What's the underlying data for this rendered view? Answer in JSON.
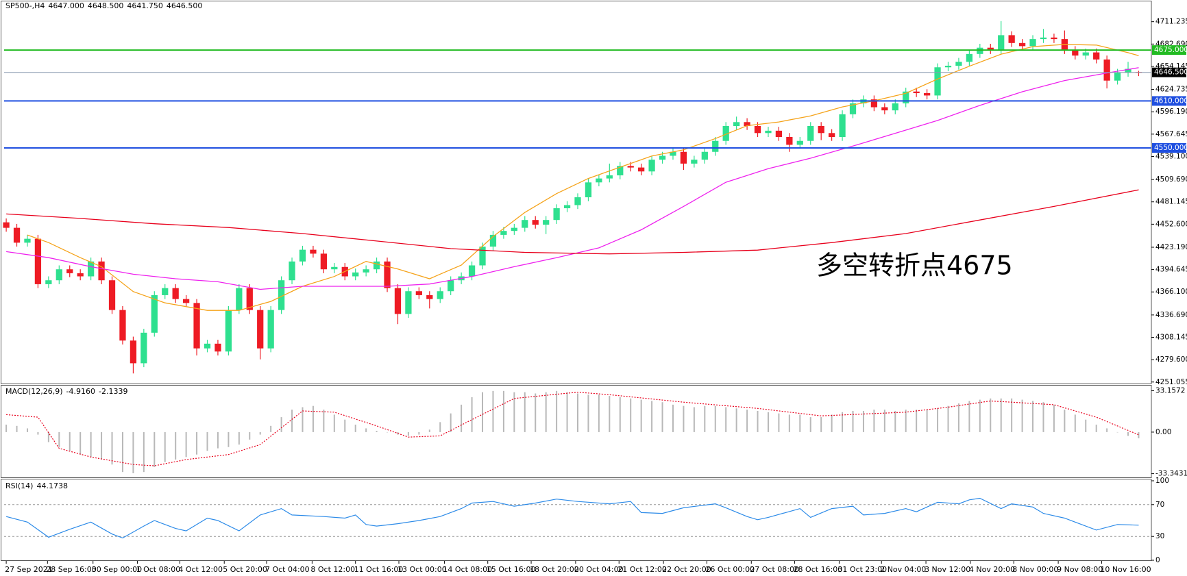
{
  "chart_data": [
    {
      "type": "candlestick",
      "title": "SP500-,H4",
      "header_values": [
        {
          "value": 4647,
          "label": "4647.000"
        },
        {
          "value": 4648.5,
          "label": "4648.500"
        },
        {
          "value": 4641.75,
          "label": "4641.750"
        },
        {
          "value": 4646.5,
          "label": "4646.500"
        }
      ],
      "up_color": "#2ee08f",
      "down_color": "#ee1b24",
      "open": [
        4455,
        4448,
        4429,
        4434,
        4376,
        4381,
        4395,
        4390,
        4386,
        4405,
        4381,
        4343,
        4304,
        4275,
        4314,
        4362,
        4371,
        4357,
        4352,
        4294,
        4300,
        4290,
        4343,
        4371,
        4343,
        4294,
        4343,
        4381,
        4405,
        4420,
        4415,
        4395,
        4398,
        4386,
        4391,
        4395,
        4405,
        4371,
        4338,
        4367,
        4362,
        4357,
        4367,
        4381,
        4386,
        4400,
        4424,
        4439,
        4444,
        4448,
        4458,
        4452,
        4458,
        4473,
        4477,
        4487,
        4506,
        4511,
        4515,
        4527,
        4525,
        4520,
        4535,
        4540,
        4545,
        4530,
        4535,
        4545,
        4559,
        4578,
        4583,
        4578,
        4569,
        4572,
        4564,
        4554,
        4559,
        4578,
        4569,
        4564,
        4593,
        4607,
        4612,
        4602,
        4598,
        4607,
        4622,
        4620,
        4617,
        4653,
        4655,
        4660,
        4670,
        4678,
        4675,
        4694,
        4684,
        4680,
        4689,
        4691,
        4689,
        4675,
        4668,
        4672,
        4663,
        4636,
        4646,
        4647
      ],
      "high": [
        4460,
        4453,
        4439,
        4439,
        4386,
        4400,
        4400,
        4395,
        4410,
        4410,
        4386,
        4348,
        4309,
        4319,
        4367,
        4376,
        4376,
        4362,
        4357,
        4305,
        4305,
        4348,
        4376,
        4376,
        4348,
        4348,
        4386,
        4410,
        4425,
        4425,
        4420,
        4403,
        4403,
        4396,
        4400,
        4410,
        4410,
        4376,
        4372,
        4372,
        4367,
        4372,
        4386,
        4391,
        4405,
        4429,
        4444,
        4449,
        4453,
        4463,
        4463,
        4463,
        4478,
        4482,
        4492,
        4511,
        4516,
        4530,
        4532,
        4532,
        4530,
        4540,
        4545,
        4550,
        4550,
        4540,
        4550,
        4564,
        4583,
        4590,
        4588,
        4583,
        4577,
        4577,
        4569,
        4564,
        4583,
        4583,
        4574,
        4598,
        4612,
        4617,
        4617,
        4607,
        4612,
        4627,
        4627,
        4625,
        4658,
        4660,
        4665,
        4675,
        4683,
        4683,
        4712,
        4699,
        4689,
        4694,
        4702,
        4696,
        4700,
        4680,
        4677,
        4677,
        4668,
        4651,
        4660,
        4648.5
      ],
      "low": [
        4443,
        4424,
        4424,
        4371,
        4371,
        4376,
        4385,
        4381,
        4381,
        4376,
        4338,
        4299,
        4262,
        4270,
        4309,
        4357,
        4352,
        4347,
        4285,
        4289,
        4285,
        4285,
        4338,
        4338,
        4280,
        4289,
        4338,
        4376,
        4400,
        4410,
        4390,
        4390,
        4381,
        4381,
        4386,
        4390,
        4366,
        4325,
        4333,
        4357,
        4345,
        4352,
        4362,
        4376,
        4381,
        4395,
        4419,
        4434,
        4439,
        4443,
        4447,
        4440,
        4453,
        4468,
        4472,
        4482,
        4501,
        4506,
        4510,
        4520,
        4515,
        4515,
        4530,
        4535,
        4522,
        4525,
        4530,
        4540,
        4554,
        4573,
        4573,
        4564,
        4564,
        4559,
        4545,
        4549,
        4554,
        4560,
        4559,
        4559,
        4588,
        4602,
        4597,
        4593,
        4593,
        4602,
        4615,
        4612,
        4612,
        4648,
        4650,
        4655,
        4665,
        4670,
        4670,
        4679,
        4675,
        4675,
        4684,
        4684,
        4670,
        4663,
        4663,
        4658,
        4626,
        4631,
        4641,
        4641.75
      ],
      "close": [
        4448,
        4429,
        4434,
        4376,
        4381,
        4395,
        4390,
        4386,
        4405,
        4381,
        4343,
        4304,
        4275,
        4314,
        4362,
        4371,
        4357,
        4352,
        4294,
        4300,
        4290,
        4343,
        4371,
        4343,
        4294,
        4343,
        4381,
        4405,
        4420,
        4415,
        4395,
        4398,
        4386,
        4391,
        4395,
        4405,
        4371,
        4338,
        4367,
        4362,
        4357,
        4367,
        4381,
        4386,
        4400,
        4424,
        4439,
        4444,
        4448,
        4458,
        4452,
        4458,
        4473,
        4477,
        4487,
        4506,
        4511,
        4515,
        4527,
        4525,
        4520,
        4535,
        4540,
        4545,
        4530,
        4535,
        4545,
        4559,
        4578,
        4583,
        4578,
        4569,
        4572,
        4564,
        4554,
        4559,
        4578,
        4569,
        4564,
        4593,
        4607,
        4612,
        4602,
        4598,
        4607,
        4622,
        4620,
        4617,
        4653,
        4655,
        4660,
        4670,
        4678,
        4675,
        4694,
        4684,
        4680,
        4689,
        4691,
        4689,
        4675,
        4668,
        4672,
        4663,
        4636,
        4646,
        4651,
        4646.5
      ],
      "xlim": [
        -0.2,
        108.2
      ],
      "xticks": [
        {
          "value": 0,
          "label": "27 Sep 2021"
        },
        {
          "value": 3.9,
          "label": "28 Sep 16:00"
        },
        {
          "value": 8.2,
          "label": "30 Sep 00:00"
        },
        {
          "value": 12.4,
          "label": "1 Oct 08:00"
        },
        {
          "value": 16.4,
          "label": "4 Oct 12:00"
        },
        {
          "value": 20.6,
          "label": "5 Oct 20:00"
        },
        {
          "value": 24.6,
          "label": "7 Oct 04:00"
        },
        {
          "value": 28.9,
          "label": "8 Oct 12:00"
        },
        {
          "value": 33,
          "label": "11 Oct 16:00"
        },
        {
          "value": 37.1,
          "label": "13 Oct 00:00"
        },
        {
          "value": 41.4,
          "label": "14 Oct 08:00"
        },
        {
          "value": 45.5,
          "label": "15 Oct 16:00"
        },
        {
          "value": 49.6,
          "label": "18 Oct 20:00"
        },
        {
          "value": 53.8,
          "label": "20 Oct 04:00"
        },
        {
          "value": 57.9,
          "label": "21 Oct 12:00"
        },
        {
          "value": 62.1,
          "label": "22 Oct 20:00"
        },
        {
          "value": 66.2,
          "label": "26 Oct 00:00"
        },
        {
          "value": 70.4,
          "label": "27 Oct 08:00"
        },
        {
          "value": 74.5,
          "label": "28 Oct 16:00"
        },
        {
          "value": 78.7,
          "label": "31 Oct 23:00"
        },
        {
          "value": 82.7,
          "label": "2 Nov 04:00"
        },
        {
          "value": 86.9,
          "label": "3 Nov 12:00"
        },
        {
          "value": 91.1,
          "label": "4 Nov 20:00"
        },
        {
          "value": 95.2,
          "label": "8 Nov 00:00"
        },
        {
          "value": 99.4,
          "label": "9 Nov 08:00"
        },
        {
          "value": 103.5,
          "label": "10 Nov 16:00"
        }
      ],
      "ylim": [
        4249.1,
        4737.2
      ],
      "yticks": [
        4711.235,
        {
          "value": 4682.69,
          "label": "4682.690"
        },
        4654.145,
        4624.735,
        {
          "value": 4596.19,
          "label": "4596.190"
        },
        4567.645,
        {
          "value": 4539.1,
          "label": "4539.100"
        },
        {
          "value": 4509.69,
          "label": "4509.690"
        },
        4481.145,
        {
          "value": 4452.6,
          "label": "4452.600"
        },
        {
          "value": 4423.19,
          "label": "4423.190"
        },
        4394.645,
        {
          "value": 4366.1,
          "label": "4366.100"
        },
        {
          "value": 4336.69,
          "label": "4336.690"
        },
        4308.145,
        {
          "value": 4279.6,
          "label": "4279.600"
        },
        4251.055
      ],
      "lines": [
        {
          "color": "#f5a31a",
          "x": [
            2,
            4,
            7,
            9,
            12,
            15,
            19,
            22,
            25,
            28,
            31,
            34,
            37,
            40,
            43,
            46,
            49,
            52,
            55,
            58,
            61,
            64,
            67,
            70,
            73,
            76,
            79,
            82,
            85,
            88,
            91,
            94,
            97,
            100,
            103,
            106,
            107
          ],
          "values": [
            4438.8,
            4429.1,
            4409.9,
            4398.3,
            4366.6,
            4352.1,
            4342.5,
            4342.5,
            4354.0,
            4373.3,
            4385.8,
            4405.1,
            4395.4,
            4382.9,
            4400.3,
            4436.8,
            4467.6,
            4491.7,
            4511.0,
            4525.4,
            4539.8,
            4547.6,
            4562.0,
            4578.4,
            4583.2,
            4590.9,
            4602.4,
            4610.1,
            4619.8,
            4638.0,
            4654.4,
            4669.8,
            4679.4,
            4682.3,
            4681.4,
            4671.7,
            4667.9
          ]
        },
        {
          "color": "#ee22ee",
          "x": [
            0,
            4,
            8,
            12,
            16,
            20,
            24,
            28,
            32,
            36,
            40,
            44,
            48,
            52,
            56,
            60,
            64,
            68,
            72,
            76,
            80,
            84,
            88,
            92,
            96,
            100,
            104,
            107
          ],
          "values": [
            4417.6,
            4409.9,
            4398.3,
            4388.7,
            4382.9,
            4379.1,
            4369.4,
            4373.3,
            4373.3,
            4373.3,
            4376.2,
            4385.8,
            4398.3,
            4409.9,
            4422.4,
            4445.5,
            4475.3,
            4506.2,
            4523.5,
            4536.9,
            4552.4,
            4568.7,
            4585.1,
            4604.3,
            4621.7,
            4636.1,
            4645.7,
            4652.5
          ]
        },
        {
          "color": "#e8001c",
          "x": [
            0,
            7,
            14,
            21,
            28,
            35,
            42,
            49,
            57,
            64,
            71,
            78,
            85,
            92,
            99,
            107
          ],
          "values": [
            4465.7,
            4460.0,
            4453.2,
            4448.4,
            4440.7,
            4431.1,
            4421.4,
            4416.6,
            4414.7,
            4416.6,
            4419.5,
            4429.1,
            4440.7,
            4458.0,
            4475.3,
            4496.5
          ]
        }
      ],
      "levels": [
        {
          "value": 4675,
          "label": "4675.000",
          "color": "#22bb22",
          "label_color": "#22bb22"
        },
        {
          "value": 4646.5,
          "label": "4646.500",
          "color": "#8a9ab0",
          "label_color": "#000000"
        },
        {
          "value": 4610,
          "label": "4610.000",
          "color": "#1f4fe0",
          "label_color": "#1f4fe0"
        },
        {
          "value": 4550,
          "label": "4550.000",
          "color": "#1f4fe0",
          "label_color": "#1f4fe0"
        }
      ],
      "annotation": "多空转折点4675",
      "annotation_color": "#e8001c"
    },
    {
      "type": "macd",
      "title": "MACD(12,26,9)",
      "header_values": [
        {
          "value": -4.916,
          "label": "-4.9160"
        },
        -2.1339
      ],
      "histogram": {
        "color": "#b8b8b8",
        "values": [
          6,
          5,
          3,
          -2,
          -8,
          -12,
          -15,
          -18,
          -20,
          -22,
          -26,
          -32,
          -33,
          -32,
          -28,
          -24,
          -22,
          -20,
          -18,
          -15,
          -13,
          -12,
          -10,
          -6,
          -2,
          5,
          12,
          18,
          20,
          21,
          18,
          14,
          10,
          6,
          3,
          1,
          0,
          -2,
          -3,
          -2,
          2,
          8,
          15,
          22,
          28,
          32,
          33,
          33,
          32,
          32,
          31,
          32,
          33,
          32,
          31,
          30,
          30,
          29,
          28,
          27,
          26,
          25,
          24,
          22,
          21,
          20,
          21,
          21,
          20,
          19,
          18,
          17,
          16,
          15,
          14,
          14,
          12,
          12,
          14,
          16,
          17,
          17,
          18,
          18,
          17,
          18,
          18,
          18,
          19,
          21,
          23,
          25,
          26,
          27,
          27,
          27,
          26,
          25,
          24,
          22,
          18,
          14,
          10,
          6,
          3,
          0,
          -3,
          -4.916
        ]
      },
      "signal": {
        "color": "#e8001c",
        "x": [
          0,
          3,
          5,
          8,
          12,
          14,
          17,
          21,
          24,
          28,
          31,
          35,
          38,
          41,
          44,
          48,
          54,
          57,
          64,
          71,
          77,
          85,
          89,
          93,
          99,
          103,
          107
        ],
        "values": [
          14,
          12,
          -13,
          -20,
          -26,
          -27,
          -22,
          -18,
          -10,
          17,
          16,
          5,
          -4,
          -3,
          10,
          27,
          32,
          30,
          24,
          19,
          13,
          16,
          20,
          25,
          22,
          12,
          -2.1339
        ]
      },
      "ylim": [
        -36.3,
        37.3
      ],
      "yticks": [
        33.1572,
        {
          "value": 0,
          "label": "0.00"
        },
        -33.3431
      ]
    },
    {
      "type": "line",
      "title": "RSI(14)",
      "header_values": [
        44.1738
      ],
      "color": "#2b8ae8",
      "x": [
        0,
        2,
        4,
        6,
        8,
        10,
        11,
        13,
        14,
        16,
        17,
        19,
        20,
        22,
        24,
        26,
        27,
        30,
        32,
        33,
        34,
        35,
        37,
        39,
        41,
        43,
        44,
        46,
        48,
        50,
        52,
        54,
        55,
        57,
        59,
        60,
        62,
        64,
        67,
        68,
        70,
        71,
        72,
        75,
        76,
        78,
        80,
        81,
        83,
        85,
        86,
        88,
        90,
        91,
        92,
        94,
        95,
        97,
        98,
        100,
        101,
        103,
        105,
        107
      ],
      "values": [
        55,
        48,
        29,
        39,
        48,
        33,
        28,
        43,
        50,
        40,
        37,
        53,
        50,
        37,
        57,
        65,
        57,
        55,
        53,
        57,
        45,
        43,
        46,
        50,
        55,
        65,
        72,
        74,
        68,
        72,
        77,
        74,
        73,
        71,
        74,
        60,
        59,
        66,
        71,
        66,
        55,
        51,
        54,
        65,
        54,
        65,
        68,
        57,
        59,
        65,
        61,
        73,
        71,
        76,
        78,
        65,
        71,
        67,
        59,
        53,
        48,
        38,
        45,
        44.1738
      ],
      "ylim": [
        0,
        100
      ],
      "yticks": [
        100,
        70,
        30,
        0
      ],
      "levels": [
        70,
        30
      ]
    }
  ]
}
